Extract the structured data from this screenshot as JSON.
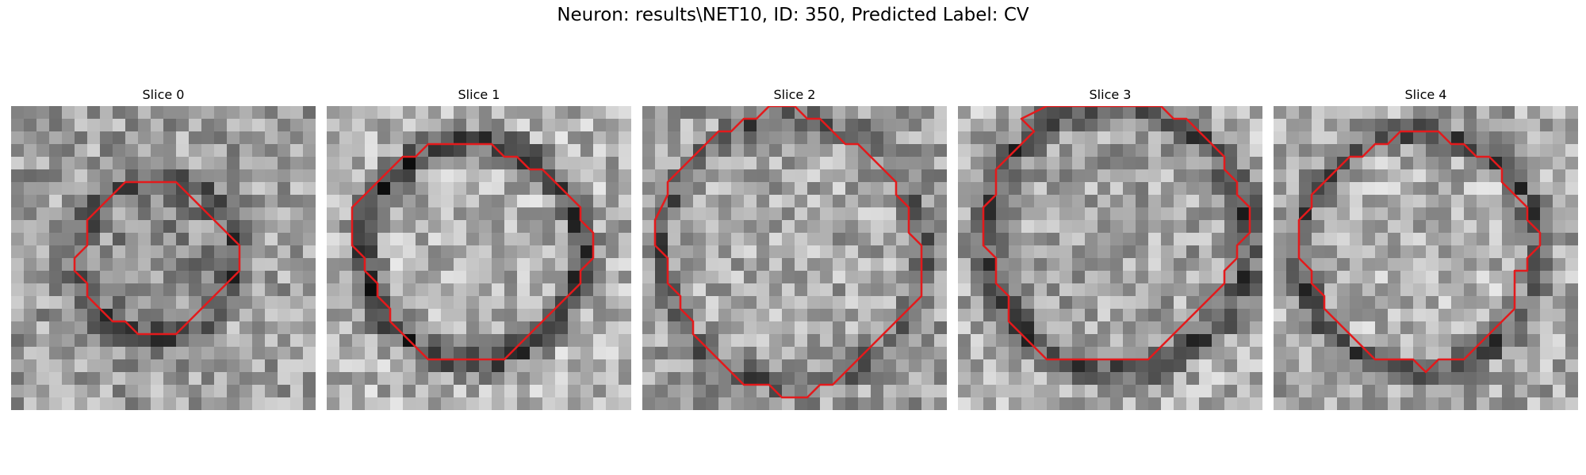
{
  "figure": {
    "title": "Neuron: results\\NET10, ID: 350, Predicted Label: CV"
  },
  "panels": [
    {
      "title": "Slice 0",
      "overlay_color": "#e31a1c",
      "contour": [
        [
          10,
          6
        ],
        [
          13,
          6
        ],
        [
          14,
          7
        ],
        [
          15,
          8
        ],
        [
          16,
          9
        ],
        [
          17,
          10
        ],
        [
          18,
          11
        ],
        [
          18,
          12
        ],
        [
          18,
          13
        ],
        [
          17,
          14
        ],
        [
          16,
          15
        ],
        [
          15,
          16
        ],
        [
          14,
          17
        ],
        [
          13,
          18
        ],
        [
          10,
          18
        ],
        [
          9,
          17
        ],
        [
          8,
          17
        ],
        [
          7,
          16
        ],
        [
          6,
          15
        ],
        [
          6,
          14
        ],
        [
          5,
          13
        ],
        [
          5,
          12
        ],
        [
          6,
          11
        ],
        [
          6,
          9
        ],
        [
          7,
          8
        ],
        [
          8,
          7
        ],
        [
          9,
          6
        ]
      ]
    },
    {
      "title": "Slice 1",
      "overlay_color": "#e31a1c",
      "contour": [
        [
          8,
          3
        ],
        [
          12,
          3
        ],
        [
          13,
          3
        ],
        [
          14,
          4
        ],
        [
          15,
          4
        ],
        [
          16,
          5
        ],
        [
          17,
          5
        ],
        [
          18,
          6
        ],
        [
          19,
          7
        ],
        [
          20,
          8
        ],
        [
          20,
          9
        ],
        [
          21,
          10
        ],
        [
          21,
          11
        ],
        [
          21,
          12
        ],
        [
          20,
          13
        ],
        [
          20,
          14
        ],
        [
          19,
          15
        ],
        [
          18,
          16
        ],
        [
          17,
          17
        ],
        [
          16,
          18
        ],
        [
          15,
          19
        ],
        [
          14,
          20
        ],
        [
          12,
          20
        ],
        [
          8,
          20
        ],
        [
          7,
          19
        ],
        [
          6,
          18
        ],
        [
          5,
          17
        ],
        [
          5,
          16
        ],
        [
          4,
          15
        ],
        [
          4,
          14
        ],
        [
          3,
          13
        ],
        [
          3,
          12
        ],
        [
          2,
          11
        ],
        [
          2,
          8
        ],
        [
          3,
          7
        ],
        [
          4,
          6
        ],
        [
          5,
          5
        ],
        [
          6,
          4
        ],
        [
          7,
          4
        ]
      ]
    },
    {
      "title": "Slice 2",
      "overlay_color": "#e31a1c",
      "contour": [
        [
          9,
          1
        ],
        [
          10,
          0
        ],
        [
          12,
          0
        ],
        [
          13,
          1
        ],
        [
          14,
          1
        ],
        [
          15,
          2
        ],
        [
          16,
          3
        ],
        [
          17,
          3
        ],
        [
          18,
          4
        ],
        [
          19,
          5
        ],
        [
          20,
          6
        ],
        [
          20,
          7
        ],
        [
          21,
          8
        ],
        [
          21,
          10
        ],
        [
          22,
          11
        ],
        [
          22,
          12
        ],
        [
          22,
          14
        ],
        [
          22,
          15
        ],
        [
          21,
          16
        ],
        [
          20,
          17
        ],
        [
          19,
          18
        ],
        [
          18,
          19
        ],
        [
          17,
          20
        ],
        [
          16,
          21
        ],
        [
          15,
          22
        ],
        [
          14,
          22
        ],
        [
          13,
          23
        ],
        [
          11,
          23
        ],
        [
          10,
          22
        ],
        [
          8,
          22
        ],
        [
          7,
          21
        ],
        [
          6,
          20
        ],
        [
          5,
          19
        ],
        [
          4,
          18
        ],
        [
          4,
          17
        ],
        [
          3,
          16
        ],
        [
          3,
          15
        ],
        [
          2,
          14
        ],
        [
          2,
          12
        ],
        [
          1,
          11
        ],
        [
          1,
          9
        ],
        [
          2,
          7
        ],
        [
          2,
          6
        ],
        [
          3,
          5
        ],
        [
          4,
          4
        ],
        [
          5,
          3
        ],
        [
          6,
          2
        ],
        [
          7,
          2
        ],
        [
          8,
          1
        ]
      ]
    },
    {
      "title": "Slice 3",
      "overlay_color": "#e31a1c",
      "contour": [
        [
          5,
          1
        ],
        [
          7,
          0
        ],
        [
          12,
          0
        ],
        [
          16,
          0
        ],
        [
          17,
          1
        ],
        [
          18,
          1
        ],
        [
          19,
          2
        ],
        [
          20,
          3
        ],
        [
          21,
          4
        ],
        [
          21,
          5
        ],
        [
          22,
          6
        ],
        [
          22,
          7
        ],
        [
          23,
          8
        ],
        [
          23,
          10
        ],
        [
          22,
          11
        ],
        [
          22,
          12
        ],
        [
          21,
          13
        ],
        [
          21,
          14
        ],
        [
          20,
          15
        ],
        [
          19,
          16
        ],
        [
          18,
          17
        ],
        [
          17,
          18
        ],
        [
          16,
          19
        ],
        [
          15,
          20
        ],
        [
          13,
          20
        ],
        [
          12,
          20
        ],
        [
          7,
          20
        ],
        [
          6,
          19
        ],
        [
          5,
          18
        ],
        [
          4,
          17
        ],
        [
          4,
          15
        ],
        [
          3,
          14
        ],
        [
          3,
          12
        ],
        [
          2,
          11
        ],
        [
          2,
          10
        ],
        [
          2,
          8
        ],
        [
          3,
          7
        ],
        [
          3,
          5
        ],
        [
          4,
          4
        ],
        [
          5,
          3
        ],
        [
          6,
          2
        ]
      ]
    },
    {
      "title": "Slice 4",
      "overlay_color": "#e31a1c",
      "contour": [
        [
          8,
          3
        ],
        [
          9,
          3
        ],
        [
          10,
          2
        ],
        [
          13,
          2
        ],
        [
          14,
          3
        ],
        [
          15,
          3
        ],
        [
          16,
          4
        ],
        [
          17,
          4
        ],
        [
          18,
          5
        ],
        [
          18,
          6
        ],
        [
          19,
          7
        ],
        [
          20,
          8
        ],
        [
          20,
          9
        ],
        [
          21,
          10
        ],
        [
          21,
          11
        ],
        [
          20,
          12
        ],
        [
          20,
          13
        ],
        [
          19,
          13
        ],
        [
          19,
          14
        ],
        [
          19,
          15
        ],
        [
          19,
          16
        ],
        [
          18,
          17
        ],
        [
          17,
          18
        ],
        [
          16,
          19
        ],
        [
          15,
          20
        ],
        [
          14,
          20
        ],
        [
          13,
          20
        ],
        [
          12,
          21
        ],
        [
          11,
          20
        ],
        [
          8,
          20
        ],
        [
          7,
          19
        ],
        [
          6,
          18
        ],
        [
          5,
          17
        ],
        [
          4,
          16
        ],
        [
          4,
          15
        ],
        [
          3,
          14
        ],
        [
          3,
          13
        ],
        [
          2,
          12
        ],
        [
          2,
          11
        ],
        [
          2,
          9
        ],
        [
          3,
          8
        ],
        [
          3,
          7
        ],
        [
          4,
          6
        ],
        [
          5,
          5
        ],
        [
          6,
          4
        ],
        [
          7,
          4
        ]
      ]
    }
  ]
}
